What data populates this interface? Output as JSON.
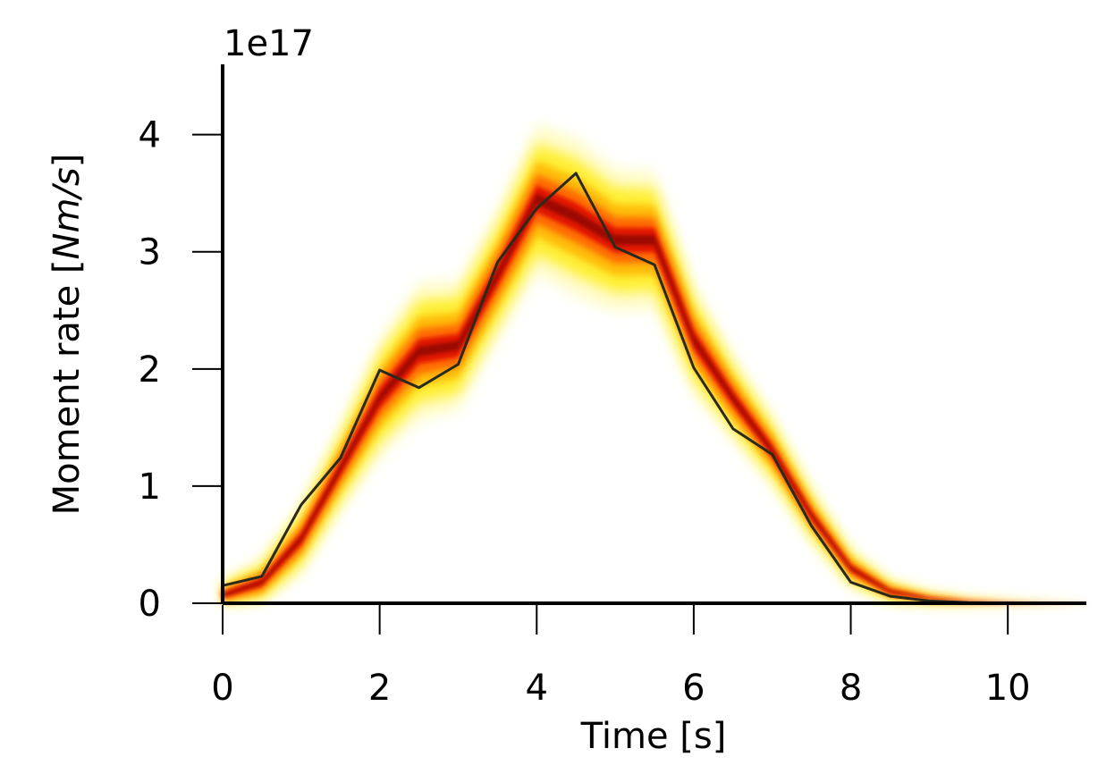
{
  "chart_data": {
    "type": "line",
    "title": "",
    "xlabel": "Time [s]",
    "ylabel_prefix": "Moment rate [",
    "ylabel_units": "Nm/s",
    "ylabel_suffix": "]",
    "y_offset_label": "1e17",
    "xlim": [
      0,
      11
    ],
    "ylim": [
      0,
      4.6
    ],
    "y_scale_factor": 1e+17,
    "xticks": [
      0,
      2,
      4,
      6,
      8,
      10
    ],
    "xtick_labels": [
      "0",
      "2",
      "4",
      "6",
      "8",
      "10"
    ],
    "yticks": [
      0,
      1,
      2,
      3,
      4
    ],
    "ytick_labels": [
      "0",
      "1",
      "2",
      "3",
      "4"
    ],
    "grid": false,
    "legend": "none",
    "series": [
      {
        "style": "ensemble-density",
        "colors": [
          "#fffaa0",
          "#ffea00",
          "#ffb000",
          "#ff5a00",
          "#e01000",
          "#6a0000"
        ],
        "x": [
          0,
          0.5,
          1.0,
          1.5,
          2.0,
          2.5,
          3.0,
          3.5,
          4.0,
          4.5,
          5.0,
          5.5,
          6.0,
          6.5,
          7.0,
          7.5,
          8.0,
          8.5,
          9.0,
          9.5,
          10.0,
          10.5,
          11.0
        ],
        "center": [
          0.07,
          0.18,
          0.55,
          1.15,
          1.75,
          2.15,
          2.2,
          2.8,
          3.45,
          3.3,
          3.1,
          3.1,
          2.25,
          1.75,
          1.3,
          0.75,
          0.3,
          0.1,
          0.04,
          0.015,
          0.005,
          0.002,
          0.0
        ],
        "spread": [
          0.08,
          0.12,
          0.18,
          0.22,
          0.3,
          0.35,
          0.33,
          0.33,
          0.38,
          0.4,
          0.36,
          0.35,
          0.28,
          0.22,
          0.18,
          0.14,
          0.1,
          0.06,
          0.03,
          0.015,
          0.008,
          0.004,
          0.002
        ]
      },
      {
        "style": "line",
        "color": "#2a2a1a",
        "x": [
          0,
          0.5,
          1.0,
          1.5,
          2.0,
          2.5,
          3.0,
          3.5,
          4.0,
          4.5,
          5.0,
          5.5,
          6.0,
          6.5,
          7.0,
          7.5,
          8.0,
          8.5,
          9.0,
          9.5,
          10.0,
          10.5,
          11.0
        ],
        "values": [
          0.15,
          0.23,
          0.84,
          1.24,
          1.99,
          1.84,
          2.04,
          2.91,
          3.37,
          3.67,
          3.04,
          2.89,
          2.01,
          1.49,
          1.27,
          0.66,
          0.18,
          0.06,
          0.02,
          0.005,
          0.002,
          0.001,
          0.0
        ]
      }
    ]
  }
}
